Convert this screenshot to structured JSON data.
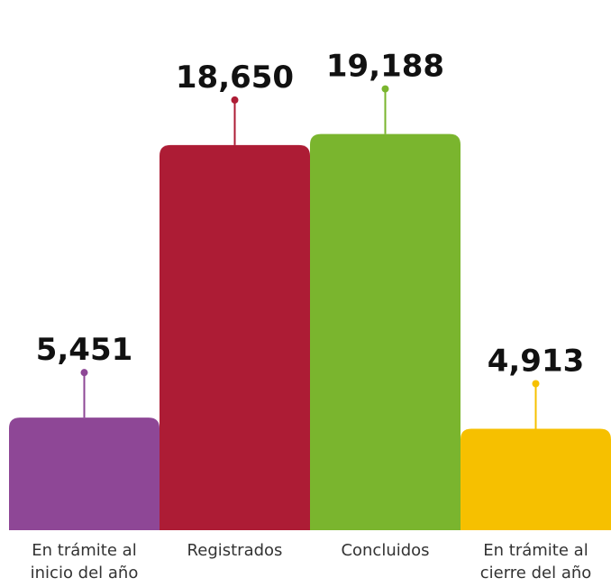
{
  "chart_data": {
    "type": "bar",
    "categories": [
      "En trámite al inicio del año",
      "Registrados",
      "Concluidos",
      "En trámite al cierre del año"
    ],
    "values": [
      5451,
      18650,
      19188,
      4913
    ],
    "value_labels": [
      "5,451",
      "18,650",
      "19,188",
      "4,913"
    ],
    "colors": [
      "#8e4796",
      "#ad1c35",
      "#7ab52e",
      "#f6c000"
    ],
    "ylim": [
      0,
      20000
    ]
  }
}
